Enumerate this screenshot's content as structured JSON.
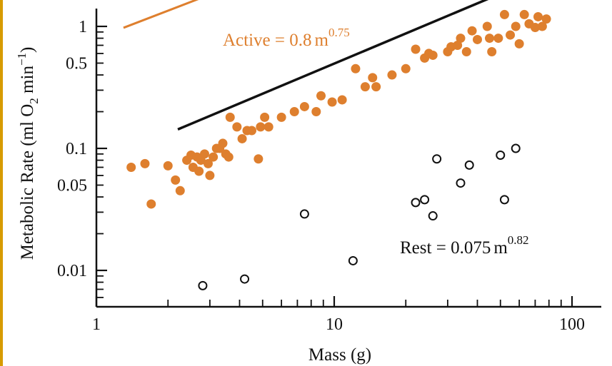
{
  "chart_data": {
    "type": "scatter",
    "title": "",
    "xlabel": "Mass (g)",
    "ylabel": "Metabolic Rate (ml O2 min-1)",
    "ylabel_parts": {
      "prefix": "Metabolic Rate (ml O",
      "sub": "2",
      "middle": " min",
      "sup": "−1",
      "suffix": ")"
    },
    "xscale": "log",
    "yscale": "log",
    "xlim": [
      1,
      120
    ],
    "ylim": [
      0.005,
      1.5
    ],
    "x_ticks": [
      {
        "value": 1,
        "label": "1"
      },
      {
        "value": 10,
        "label": "10"
      },
      {
        "value": 100,
        "label": "100"
      }
    ],
    "y_ticks": [
      {
        "value": 0.01,
        "label": "0.01"
      },
      {
        "value": 0.05,
        "label": "0.05"
      },
      {
        "value": 0.1,
        "label": "0.1"
      },
      {
        "value": 0.5,
        "label": "0.5"
      },
      {
        "value": 1,
        "label": "1"
      }
    ],
    "grid": false,
    "series": [
      {
        "name": "Active",
        "color": "#de7f2e",
        "marker": "filled-circle",
        "points": [
          [
            1.4,
            0.07
          ],
          [
            1.6,
            0.075
          ],
          [
            1.7,
            0.035
          ],
          [
            2.0,
            0.072
          ],
          [
            2.15,
            0.055
          ],
          [
            2.25,
            0.045
          ],
          [
            2.4,
            0.08
          ],
          [
            2.5,
            0.088
          ],
          [
            2.55,
            0.07
          ],
          [
            2.65,
            0.085
          ],
          [
            2.7,
            0.065
          ],
          [
            2.75,
            0.08
          ],
          [
            2.85,
            0.09
          ],
          [
            2.95,
            0.075
          ],
          [
            3.0,
            0.06
          ],
          [
            3.1,
            0.085
          ],
          [
            3.2,
            0.1
          ],
          [
            3.3,
            0.1
          ],
          [
            3.4,
            0.11
          ],
          [
            3.5,
            0.09
          ],
          [
            3.6,
            0.085
          ],
          [
            3.65,
            0.18
          ],
          [
            3.9,
            0.15
          ],
          [
            4.1,
            0.12
          ],
          [
            4.3,
            0.14
          ],
          [
            4.5,
            0.14
          ],
          [
            4.8,
            0.082
          ],
          [
            4.9,
            0.15
          ],
          [
            5.1,
            0.18
          ],
          [
            5.3,
            0.15
          ],
          [
            6.0,
            0.18
          ],
          [
            6.8,
            0.2
          ],
          [
            7.5,
            0.22
          ],
          [
            8.4,
            0.2
          ],
          [
            8.8,
            0.27
          ],
          [
            9.8,
            0.24
          ],
          [
            10.8,
            0.25
          ],
          [
            12.3,
            0.45
          ],
          [
            13.5,
            0.32
          ],
          [
            14.5,
            0.38
          ],
          [
            15.0,
            0.32
          ],
          [
            17.5,
            0.4
          ],
          [
            20.0,
            0.45
          ],
          [
            22.0,
            0.65
          ],
          [
            24.0,
            0.55
          ],
          [
            25.0,
            0.6
          ],
          [
            26.0,
            0.58
          ],
          [
            30.0,
            0.62
          ],
          [
            31.0,
            0.68
          ],
          [
            33.0,
            0.7
          ],
          [
            34.0,
            0.8
          ],
          [
            36.0,
            0.62
          ],
          [
            38.0,
            0.92
          ],
          [
            40.0,
            0.78
          ],
          [
            44.0,
            1.0
          ],
          [
            45.0,
            0.8
          ],
          [
            46.0,
            0.62
          ],
          [
            49.0,
            0.8
          ],
          [
            52.0,
            1.25
          ],
          [
            55.0,
            0.85
          ],
          [
            58.0,
            1.0
          ],
          [
            60.0,
            0.72
          ],
          [
            63.0,
            1.25
          ],
          [
            66.0,
            1.05
          ],
          [
            70.0,
            0.98
          ],
          [
            72.0,
            1.2
          ],
          [
            75.0,
            1.0
          ],
          [
            78.0,
            1.15
          ]
        ],
        "fit": {
          "coefficient": 0.8,
          "exponent": 0.75,
          "x_range": [
            1.3,
            160
          ]
        },
        "equation": {
          "lhs": "Active",
          "eq": " = ",
          "coef": "0.8",
          "var": "m",
          "exp": "0.75"
        }
      },
      {
        "name": "Rest",
        "color": "#111111",
        "marker": "open-circle",
        "points": [
          [
            2.8,
            0.0075
          ],
          [
            4.2,
            0.0085
          ],
          [
            7.5,
            0.029
          ],
          [
            12.0,
            0.012
          ],
          [
            22.0,
            0.036
          ],
          [
            24.0,
            0.038
          ],
          [
            26.0,
            0.028
          ],
          [
            27.0,
            0.082
          ],
          [
            34.0,
            0.052
          ],
          [
            37.0,
            0.073
          ],
          [
            50.0,
            0.088
          ],
          [
            52.0,
            0.038
          ],
          [
            58.0,
            0.1
          ]
        ],
        "fit": {
          "coefficient": 0.075,
          "exponent": 0.82,
          "x_range": [
            2.2,
            120
          ]
        },
        "equation": {
          "lhs": "Rest",
          "eq": " = ",
          "coef": "0.075",
          "var": "m",
          "exp": "0.82"
        }
      }
    ]
  }
}
